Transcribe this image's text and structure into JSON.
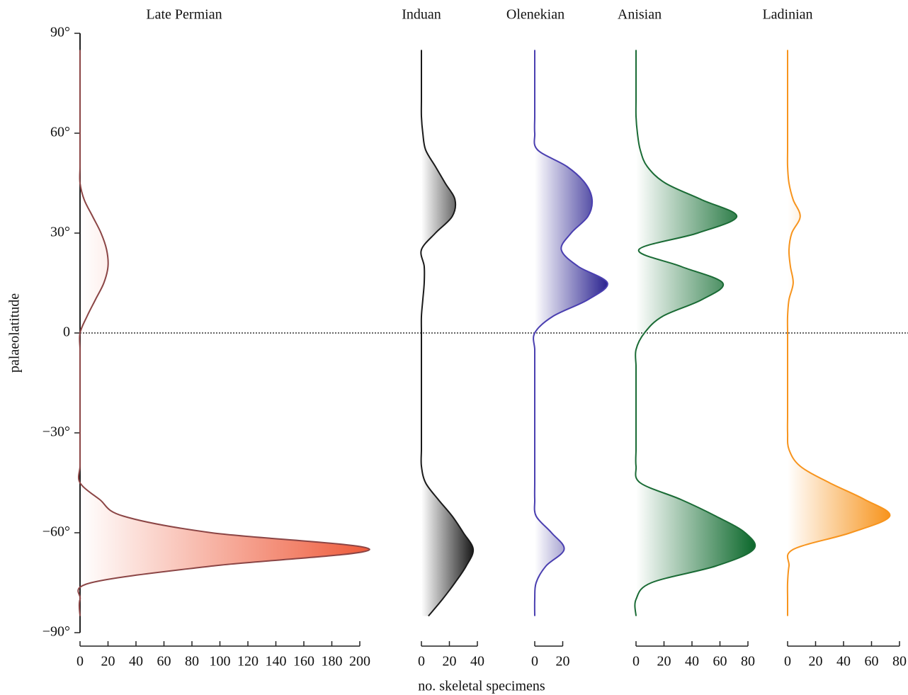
{
  "chart_data": {
    "type": "density",
    "ylabel": "palaeolatitude",
    "xlabel": "no. skeletal specimens",
    "ylim": [
      -90,
      90
    ],
    "yticks": [
      {
        "value": -90,
        "label": "−90°"
      },
      {
        "value": -60,
        "label": "−60°"
      },
      {
        "value": -30,
        "label": "−30°"
      },
      0,
      {
        "value": 30,
        "label": "30°"
      },
      {
        "value": 60,
        "label": "60°"
      },
      {
        "value": 90,
        "label": "90°"
      }
    ],
    "hline": 0,
    "y": [
      85,
      80,
      75,
      70,
      65,
      60,
      55,
      50,
      45,
      40,
      35,
      30,
      25,
      20,
      15,
      10,
      5,
      0,
      -5,
      -10,
      -15,
      -20,
      -25,
      -30,
      -35,
      -40,
      -45,
      -50,
      -55,
      -60,
      -65,
      -70,
      -75,
      -80,
      -85
    ],
    "series": [
      {
        "name": "Late Permian",
        "color": "#ee5a3a",
        "line_color": "#8b4545",
        "xlim": [
          0,
          200
        ],
        "xticks": [
          0,
          20,
          40,
          60,
          80,
          100,
          120,
          140,
          160,
          180,
          200
        ],
        "values": [
          0,
          0,
          0,
          0,
          0,
          0,
          0,
          0,
          0,
          3,
          9,
          15,
          19,
          20,
          17,
          11,
          5,
          0,
          0,
          0,
          0,
          0,
          0,
          0,
          0,
          0,
          0,
          14,
          31,
          94,
          207,
          94,
          8,
          0,
          0
        ]
      },
      {
        "name": "Induan",
        "color": "#1a1a1a",
        "line_color": "#1a1a1a",
        "xlim": [
          0,
          40
        ],
        "xticks": [
          0,
          20,
          40
        ],
        "values": [
          0,
          0,
          0,
          0,
          0,
          1,
          3,
          10,
          17,
          24,
          22,
          10,
          0,
          2,
          2,
          1,
          0,
          0,
          0,
          0,
          0,
          0,
          0,
          0,
          0,
          0,
          3,
          12,
          22,
          30,
          37,
          32,
          24,
          15,
          5
        ]
      },
      {
        "name": "Olenekian",
        "color": "#2b2390",
        "line_color": "#4a3fb0",
        "xlim": [
          0,
          20
        ],
        "xticks": [
          0,
          20
        ],
        "values": [
          0,
          0,
          0,
          0,
          0,
          0,
          2,
          23,
          36,
          41,
          38,
          26,
          19,
          31,
          52,
          38,
          13,
          0,
          0,
          0,
          0,
          0,
          0,
          0,
          0,
          0,
          0,
          0,
          1,
          12,
          21,
          8,
          1,
          0,
          0
        ]
      },
      {
        "name": "Anisian",
        "color": "#0f6a2e",
        "line_color": "#1a6b35",
        "xlim": [
          0,
          80
        ],
        "xticks": [
          0,
          20,
          40,
          60,
          80
        ],
        "values": [
          0,
          0,
          0,
          0,
          0,
          1,
          3,
          8,
          21,
          47,
          72,
          44,
          2,
          32,
          62,
          47,
          19,
          6,
          0,
          0,
          0,
          0,
          0,
          0,
          0,
          0,
          3,
          32,
          57,
          78,
          84,
          57,
          11,
          0,
          0
        ]
      },
      {
        "name": "Ladinian",
        "color": "#f7941d",
        "line_color": "#f7941d",
        "xlim": [
          0,
          80
        ],
        "xticks": [
          0,
          20,
          40,
          60,
          80
        ],
        "values": [
          0,
          0,
          0,
          0,
          0,
          0,
          0,
          0,
          1,
          4,
          9,
          3,
          1,
          2,
          4,
          1,
          0,
          0,
          0,
          0,
          0,
          0,
          0,
          0,
          1,
          9,
          30,
          55,
          73,
          45,
          4,
          1,
          0,
          0,
          0
        ]
      }
    ]
  }
}
